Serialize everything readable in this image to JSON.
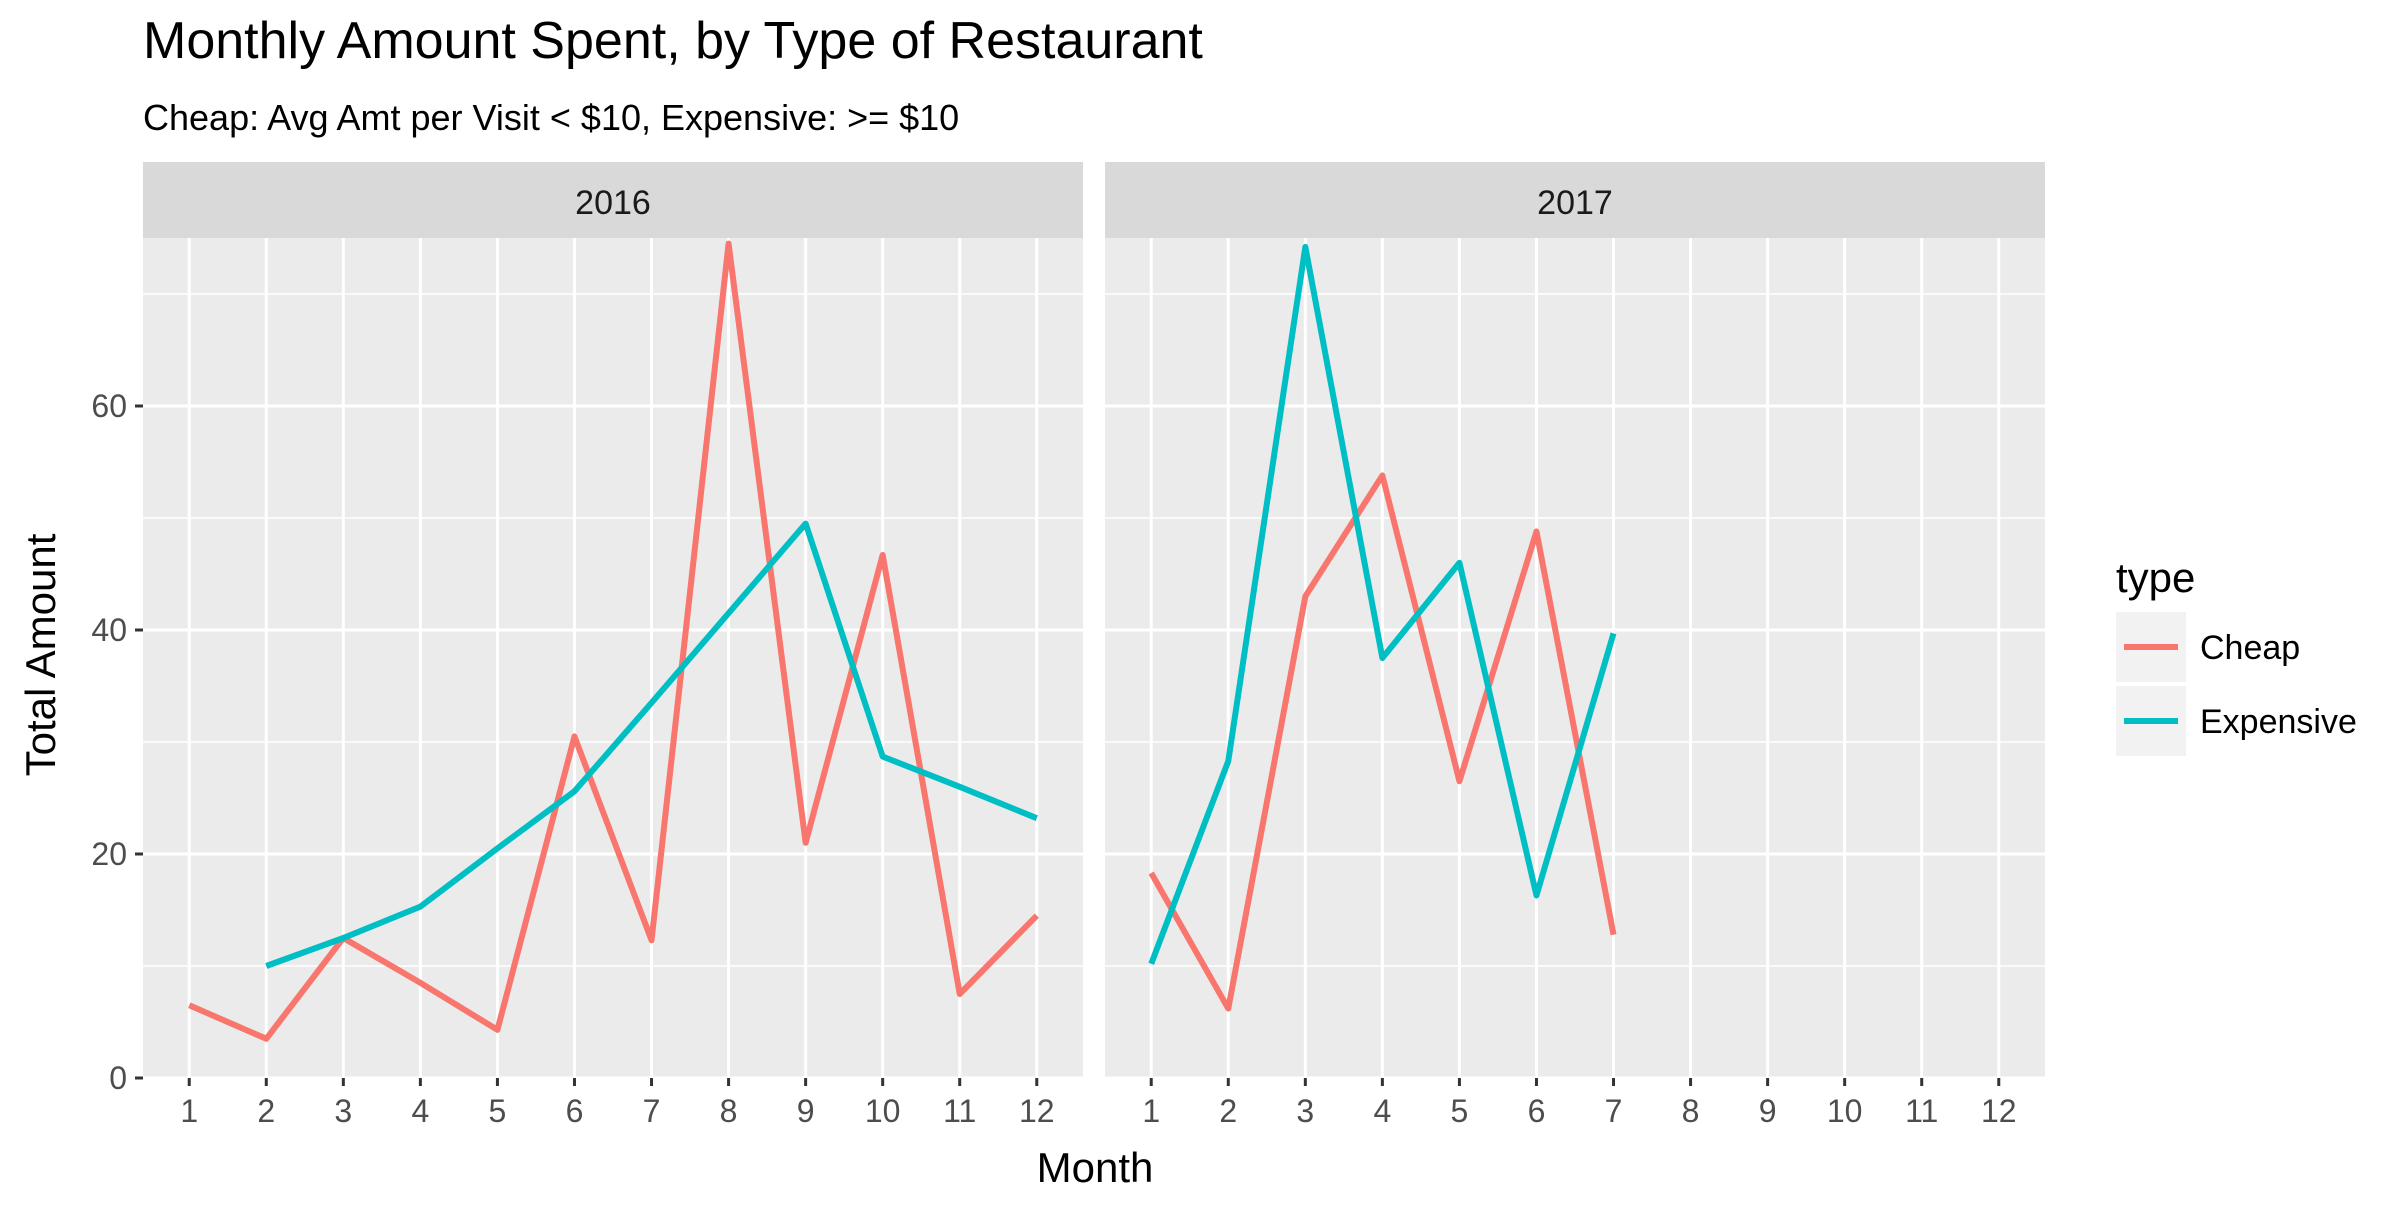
{
  "chart_data": {
    "type": "line",
    "title": "Monthly Amount Spent, by Type of Restaurant",
    "subtitle": "Cheap: Avg Amt per Visit < $10,  Expensive: >= $10",
    "xlabel": "Month",
    "ylabel": "Total Amount",
    "x_ticks": [
      1,
      2,
      3,
      4,
      5,
      6,
      7,
      8,
      9,
      10,
      11,
      12
    ],
    "y_ticks": [
      0,
      20,
      40,
      60
    ],
    "xlim": [
      0.4,
      12.6
    ],
    "ylim": [
      0,
      75
    ],
    "grid": true,
    "legend": {
      "title": "type",
      "position": "right",
      "entries": [
        "Cheap",
        "Expensive"
      ]
    },
    "colors": {
      "Cheap": "#F8766D",
      "Expensive": "#00BFC4",
      "panel_bg": "#EBEBEB",
      "strip_bg": "#D9D9D9",
      "grid": "#FFFFFF"
    },
    "facets": [
      {
        "label": "2016",
        "series": [
          {
            "name": "Cheap",
            "x": [
              1,
              2,
              3,
              4,
              5,
              6,
              7,
              8,
              9,
              10,
              11,
              12
            ],
            "y": [
              6.5,
              3.5,
              12.5,
              8.5,
              4.3,
              30.5,
              12.3,
              74.5,
              21.0,
              46.7,
              7.5,
              14.5
            ]
          },
          {
            "name": "Expensive",
            "x": [
              2,
              3,
              4,
              5,
              6,
              7,
              8,
              9,
              10,
              11,
              12
            ],
            "y": [
              10.0,
              12.5,
              15.3,
              20.5,
              25.6,
              33.5,
              41.5,
              49.5,
              28.7,
              26.0,
              23.2
            ]
          }
        ]
      },
      {
        "label": "2017",
        "series": [
          {
            "name": "Cheap",
            "x": [
              1,
              2,
              3,
              4,
              5,
              6,
              7
            ],
            "y": [
              18.3,
              6.2,
              43.0,
              53.8,
              26.5,
              48.8,
              12.8
            ]
          },
          {
            "name": "Expensive",
            "x": [
              1,
              2,
              3,
              4,
              5,
              6,
              7
            ],
            "y": [
              10.2,
              28.3,
              74.2,
              37.5,
              46.0,
              16.3,
              39.7
            ]
          }
        ]
      }
    ]
  }
}
